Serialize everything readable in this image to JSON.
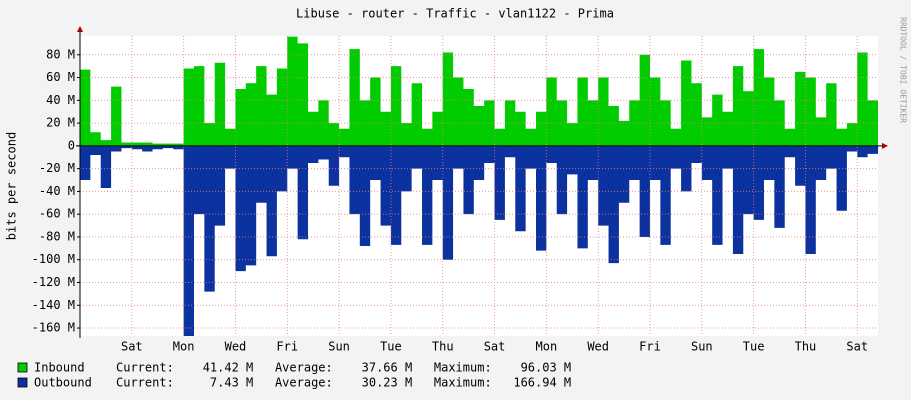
{
  "chart_data": {
    "type": "area",
    "title": "Libuse - router - Traffic - vlan1122 - Prima",
    "y_label": "bits per second",
    "watermark": "RRDTOOL / TOBI OETIKER",
    "xlim": [
      0,
      30.8
    ],
    "xticks": [
      {
        "value": 2,
        "label": "Sat"
      },
      {
        "value": 4,
        "label": "Mon"
      },
      {
        "value": 6,
        "label": "Wed"
      },
      {
        "value": 8,
        "label": "Fri"
      },
      {
        "value": 10,
        "label": "Sun"
      },
      {
        "value": 12,
        "label": "Tue"
      },
      {
        "value": 14,
        "label": "Thu"
      },
      {
        "value": 16,
        "label": "Sat"
      },
      {
        "value": 18,
        "label": "Mon"
      },
      {
        "value": 20,
        "label": "Wed"
      },
      {
        "value": 22,
        "label": "Fri"
      },
      {
        "value": 24,
        "label": "Sun"
      },
      {
        "value": 26,
        "label": "Tue"
      },
      {
        "value": 28,
        "label": "Thu"
      },
      {
        "value": 30,
        "label": "Sat"
      }
    ],
    "ylim": [
      -167,
      96.5
    ],
    "yticks": [
      {
        "value": -160,
        "label": "-160 M"
      },
      {
        "value": -140,
        "label": "-140 M"
      },
      {
        "value": -120,
        "label": "-120 M"
      },
      {
        "value": -100,
        "label": "-100 M"
      },
      {
        "value": -80,
        "label": "-80 M"
      },
      {
        "value": -60,
        "label": "-60 M"
      },
      {
        "value": -40,
        "label": "-40 M"
      },
      {
        "value": -20,
        "label": "-20 M"
      },
      0,
      {
        "value": 20,
        "label": "20 M"
      },
      {
        "value": 40,
        "label": "40 M"
      },
      {
        "value": 60,
        "label": "60 M"
      },
      {
        "value": 80,
        "label": "80 M"
      }
    ],
    "grid": true,
    "x": [
      0,
      0.4,
      0.8,
      1.2,
      1.6,
      2,
      2.4,
      2.8,
      3.2,
      3.6,
      4,
      4.4,
      4.8,
      5.2,
      5.6,
      6,
      6.4,
      6.8,
      7.2,
      7.6,
      8,
      8.4,
      8.8,
      9.2,
      9.6,
      10,
      10.4,
      10.8,
      11.2,
      11.6,
      12,
      12.4,
      12.8,
      13.2,
      13.6,
      14,
      14.4,
      14.8,
      15.2,
      15.6,
      16,
      16.4,
      16.8,
      17.2,
      17.6,
      18,
      18.4,
      18.8,
      19.2,
      19.6,
      20,
      20.4,
      20.8,
      21.2,
      21.6,
      22,
      22.4,
      22.8,
      23.2,
      23.6,
      24,
      24.4,
      24.8,
      25.2,
      25.6,
      26,
      26.4,
      26.8,
      27.2,
      27.6,
      28,
      28.4,
      28.8,
      29.2,
      29.6,
      30,
      30.4
    ],
    "series": [
      {
        "name": "Inbound",
        "color": "#00cc00",
        "stats": "Current:    41.42 M   Average:    37.66 M   Maximum:    96.03 M",
        "values": [
          67,
          12,
          5,
          52,
          3,
          3,
          3,
          2,
          2,
          2,
          68,
          70,
          20,
          73,
          15,
          50,
          55,
          70,
          45,
          68,
          96,
          90,
          30,
          40,
          20,
          15,
          85,
          40,
          60,
          30,
          70,
          20,
          55,
          15,
          30,
          82,
          60,
          50,
          35,
          40,
          15,
          40,
          30,
          15,
          30,
          60,
          40,
          20,
          60,
          40,
          60,
          35,
          22,
          40,
          80,
          60,
          40,
          15,
          75,
          55,
          25,
          45,
          30,
          70,
          48,
          85,
          60,
          40,
          15,
          65,
          60,
          25,
          55,
          15,
          20,
          82,
          40
        ]
      },
      {
        "name": "Outbound",
        "color": "#0c32a0",
        "stats": "Current:     7.43 M   Average:    30.23 M   Maximum:   166.94 M",
        "values": [
          -30,
          -8,
          -37,
          -5,
          -2,
          -3,
          -5,
          -3,
          -2,
          -3,
          -167,
          -60,
          -128,
          -70,
          -20,
          -110,
          -105,
          -50,
          -97,
          -40,
          -20,
          -82,
          -15,
          -12,
          -35,
          -10,
          -60,
          -88,
          -30,
          -70,
          -87,
          -40,
          -20,
          -87,
          -30,
          -100,
          -20,
          -60,
          -30,
          -15,
          -65,
          -10,
          -75,
          -20,
          -92,
          -15,
          -60,
          -25,
          -90,
          -30,
          -70,
          -103,
          -50,
          -30,
          -80,
          -30,
          -87,
          -20,
          -40,
          -15,
          -30,
          -87,
          -20,
          -95,
          -60,
          -65,
          -30,
          -72,
          -10,
          -35,
          -95,
          -30,
          -20,
          -57,
          -5,
          -10,
          -7
        ]
      }
    ]
  }
}
